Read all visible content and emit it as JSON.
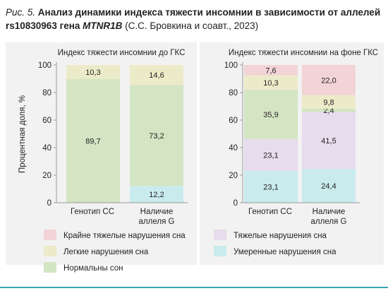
{
  "figure": {
    "label": "Рис. 5.",
    "title": "Анализ динамики индекса тяжести инсомнии в зависимости от аллелей",
    "snp": "rs10830963 гена",
    "gene": "MTNR1B",
    "source": "(С.С. Бровкина и соавт., 2023)"
  },
  "colors": {
    "severe": "#f2d4d6",
    "heavy": "#e6dced",
    "light": "#ecebc9",
    "moderate": "#c9ebee",
    "normal": "#d3e5c3",
    "axis": "#9a9a9a",
    "panel_bg": "#f2f2f2"
  },
  "chart_data": [
    {
      "type": "bar",
      "stacked": true,
      "title": "Индекс тяжести инсомнии до ГКС",
      "ylabel": "Процентная доля, %",
      "ylim": [
        0,
        100
      ],
      "yticks": [
        0,
        20,
        40,
        60,
        80,
        100
      ],
      "categories": [
        "Генотип СС",
        "Наличие аллеля G"
      ],
      "series": [
        {
          "key": "moderate",
          "name": "Умеренные нарушения сна",
          "values": [
            0,
            12.2
          ],
          "labels": [
            "0",
            "12,2"
          ]
        },
        {
          "key": "normal",
          "name": "Нормальны сон",
          "values": [
            89.7,
            73.2
          ],
          "labels": [
            "89,7",
            "73,2"
          ]
        },
        {
          "key": "light",
          "name": "Легкие нарушения сна",
          "values": [
            10.3,
            14.6
          ],
          "labels": [
            "10,3",
            "14,6"
          ]
        }
      ]
    },
    {
      "type": "bar",
      "stacked": true,
      "title": "Индекс тяжести инсомнии на фоне ГКС",
      "ylim": [
        0,
        100
      ],
      "yticks": [
        0,
        20,
        40,
        60,
        80,
        100
      ],
      "categories": [
        "Генотип СС",
        "Наличие аллеля G"
      ],
      "series": [
        {
          "key": "moderate",
          "name": "Умеренные нарушения сна",
          "values": [
            23.1,
            24.4
          ],
          "labels": [
            "23,1",
            "24,4"
          ]
        },
        {
          "key": "heavy",
          "name": "Тяжелые нарушения сна",
          "values": [
            23.1,
            41.5
          ],
          "labels": [
            "23,1",
            "41,5"
          ]
        },
        {
          "key": "normal",
          "name": "Нормальны сон",
          "values": [
            35.9,
            2.4
          ],
          "labels": [
            "35,9",
            "2,4"
          ]
        },
        {
          "key": "light",
          "name": "Легкие нарушения сна",
          "values": [
            10.3,
            9.8
          ],
          "labels": [
            "10,3",
            "9,8"
          ]
        },
        {
          "key": "severe",
          "name": "Крайне тяжелые нарушения сна",
          "values": [
            7.6,
            22.0
          ],
          "labels": [
            "7,6",
            "22,0"
          ]
        }
      ]
    }
  ],
  "legend": [
    {
      "key": "severe",
      "label": "Крайне тяжелые нарушения сна"
    },
    {
      "key": "heavy",
      "label": "Тяжелые нарушения сна"
    },
    {
      "key": "light",
      "label": "Легкие нарушения сна"
    },
    {
      "key": "moderate",
      "label": "Умеренные нарушения сна"
    },
    {
      "key": "normal",
      "label": "Нормальны сон"
    }
  ]
}
